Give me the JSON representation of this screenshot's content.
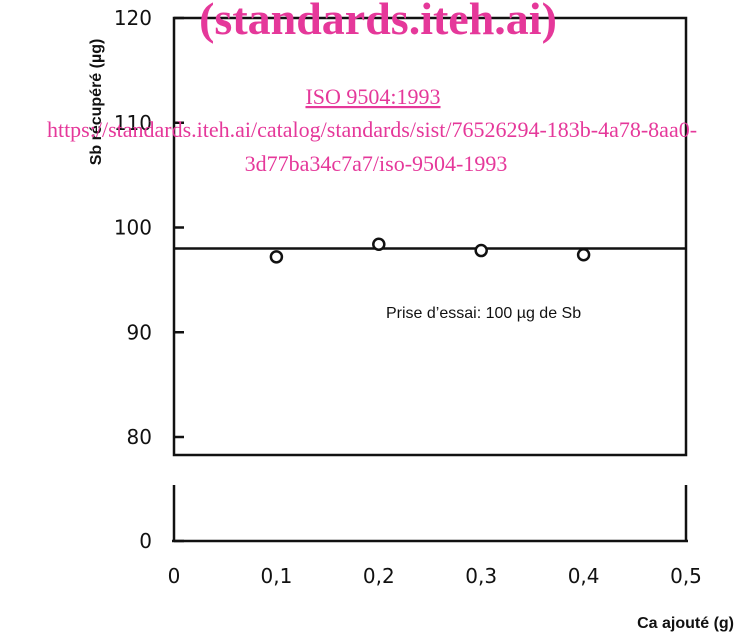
{
  "chart_data": {
    "type": "scatter",
    "xlabel": "Ca ajouté (g)",
    "ylabel": "Sb récupéré (µg)",
    "x_ticks": [
      "0",
      "0,1",
      "0,2",
      "0,3",
      "0,4",
      "0,5"
    ],
    "x_tick_values": [
      0,
      0.1,
      0.2,
      0.3,
      0.4,
      0.5
    ],
    "y_ticks": [
      "0",
      "80",
      "90",
      "100",
      "110",
      "120"
    ],
    "y_tick_values": [
      0,
      80,
      90,
      100,
      110,
      120
    ],
    "xlim": [
      0,
      0.5
    ],
    "ylim": [
      80,
      120
    ],
    "y_axis_break": "between 0 and 80",
    "series": [
      {
        "x": [
          0.1,
          0.2,
          0.3,
          0.4
        ],
        "y": [
          97.2,
          98.4,
          97.8,
          97.4
        ]
      }
    ],
    "reference_line": {
      "y": 98
    },
    "annotation": "Prise d’essai: 100 µg de Sb",
    "grid": false
  },
  "watermark": {
    "site": "(standards.iteh.ai)",
    "standard": "ISO 9504:1993",
    "url_line1": "https://standards.iteh.ai/catalog/standards/sist/76526294-183b-4a78-8aa0-",
    "url_line2": "3d77ba34c7a7/iso-9504-1993",
    "color": "#e5389a"
  }
}
